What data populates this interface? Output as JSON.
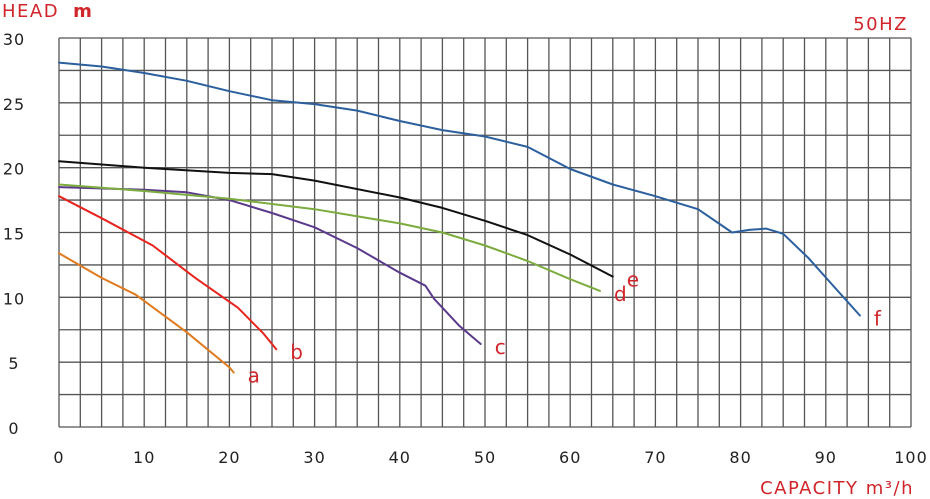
{
  "chart_data": {
    "type": "line",
    "title": "",
    "frequency_label": "50HZ",
    "ylabel_text": "HEAD",
    "ylabel_unit": "m",
    "xlabel": "CAPACITY m³/h",
    "xlim": [
      0,
      100
    ],
    "ylim": [
      0,
      30
    ],
    "xticks": [
      0,
      10,
      20,
      30,
      40,
      50,
      60,
      70,
      80,
      90,
      100
    ],
    "yticks": [
      0,
      5,
      10,
      15,
      20,
      25,
      30
    ],
    "grid": true,
    "series": [
      {
        "name": "a",
        "color": "#e07a1f",
        "x": [
          0,
          5,
          9,
          15,
          20,
          20.5
        ],
        "y": [
          13.4,
          11.5,
          10.2,
          7.3,
          4.6,
          4.2
        ]
      },
      {
        "name": "b",
        "color": "#e8231e",
        "x": [
          0,
          5,
          11,
          16,
          21,
          24,
          25.5
        ],
        "y": [
          17.8,
          16.1,
          14.0,
          11.5,
          9.2,
          7.2,
          6.0
        ]
      },
      {
        "name": "c",
        "color": "#5b3a8c",
        "x": [
          0,
          10,
          15,
          20,
          25,
          30,
          35,
          40,
          43,
          44,
          47,
          49.5
        ],
        "y": [
          18.5,
          18.3,
          18.1,
          17.5,
          16.5,
          15.4,
          13.8,
          11.9,
          10.9,
          9.9,
          7.8,
          6.4
        ]
      },
      {
        "name": "d",
        "color": "#7cab3e",
        "x": [
          0,
          10,
          20,
          30,
          40,
          45,
          50,
          55,
          60,
          63.5
        ],
        "y": [
          18.7,
          18.2,
          17.6,
          16.8,
          15.7,
          15.0,
          14.0,
          12.8,
          11.4,
          10.5
        ]
      },
      {
        "name": "e",
        "color": "#111111",
        "x": [
          0,
          10,
          20,
          25,
          30,
          40,
          45,
          50,
          55,
          60,
          65
        ],
        "y": [
          20.5,
          20.0,
          19.6,
          19.5,
          19.0,
          17.7,
          16.9,
          15.9,
          14.8,
          13.3,
          11.6
        ]
      },
      {
        "name": "f",
        "color": "#2c5f9e",
        "x": [
          0,
          5,
          10,
          15,
          20,
          25,
          30,
          35,
          40,
          45,
          50,
          55,
          60,
          65,
          70,
          75,
          79,
          81,
          83,
          85,
          88,
          91,
          94
        ],
        "y": [
          28.1,
          27.8,
          27.3,
          26.7,
          25.9,
          25.2,
          24.9,
          24.4,
          23.6,
          22.9,
          22.4,
          21.6,
          19.9,
          18.7,
          17.8,
          16.8,
          15.0,
          15.2,
          15.3,
          14.9,
          13.0,
          10.8,
          8.6
        ]
      }
    ]
  }
}
